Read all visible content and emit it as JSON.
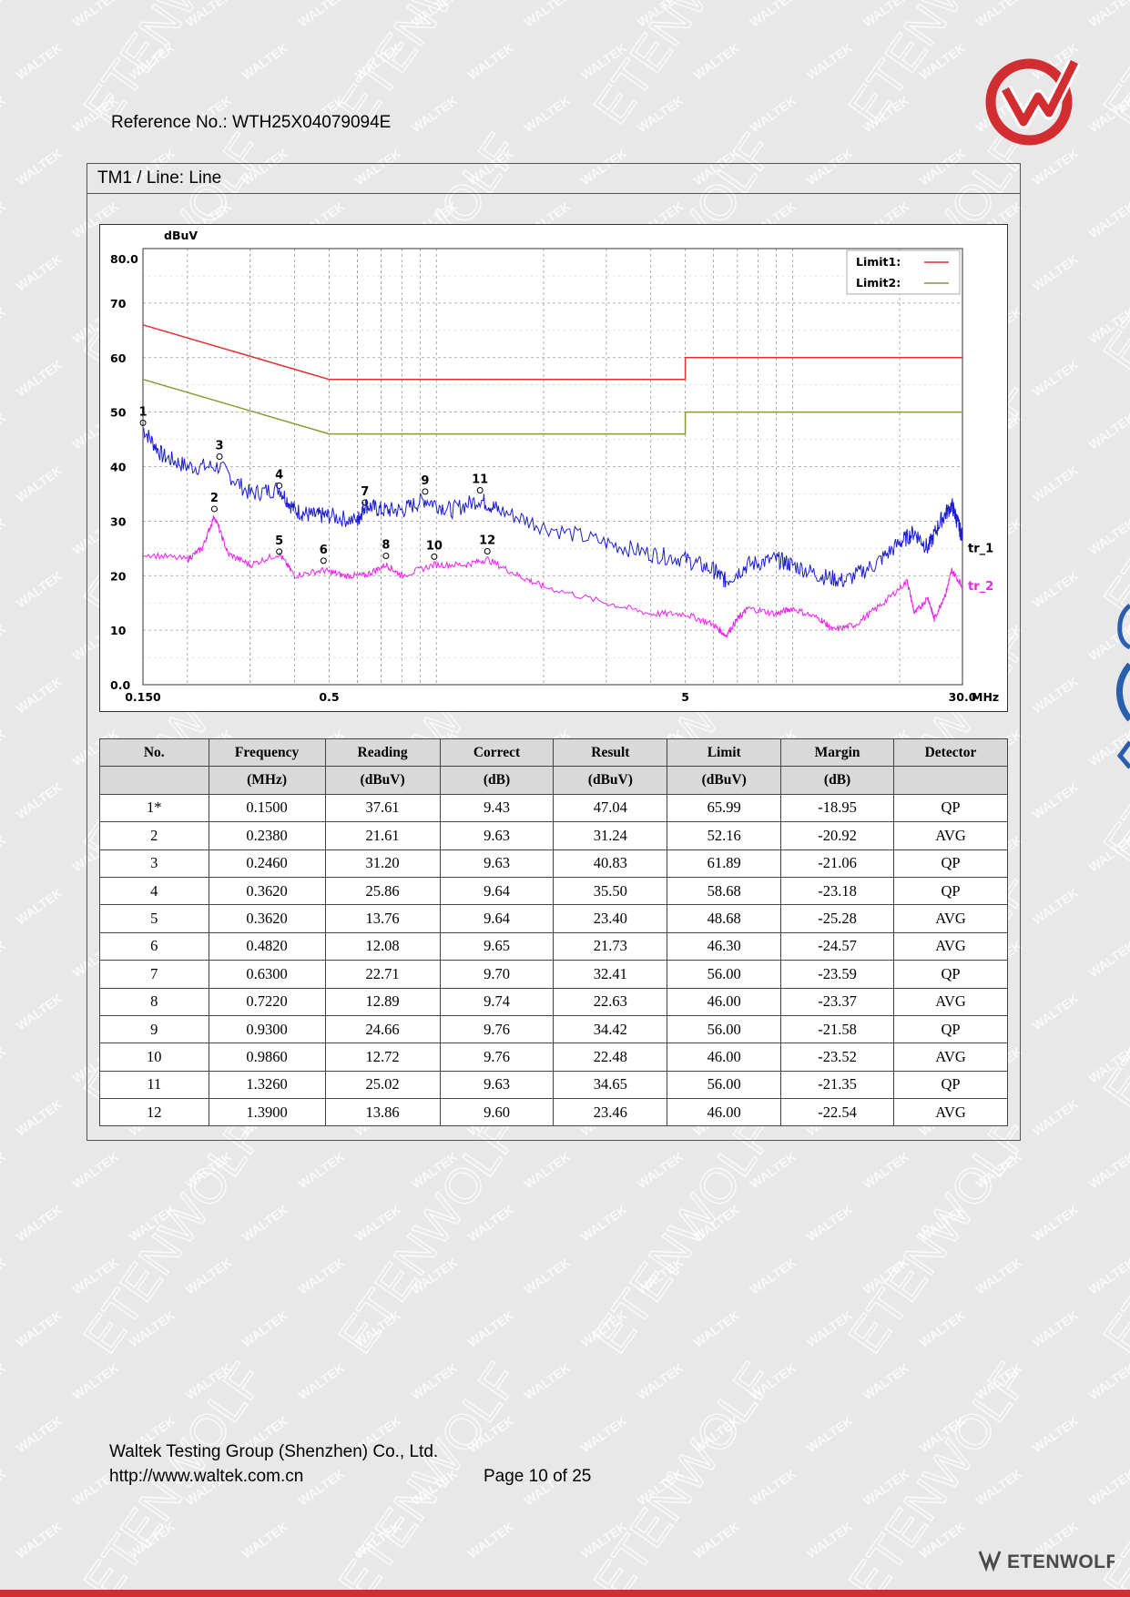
{
  "header": {
    "reference": "Reference No.: WTH25X04079094E"
  },
  "section": {
    "title": "TM1 / Line: Line"
  },
  "watermarks": {
    "small": "WALTEK",
    "large": "ETENWOLF"
  },
  "chart_data": {
    "type": "line",
    "ylabel": "dBuV",
    "xlabel": "MHz",
    "x_scale": "log",
    "xlim": [
      0.15,
      30
    ],
    "ylim": [
      0,
      80
    ],
    "y_ticks": [
      "80.0",
      "70",
      "60",
      "50",
      "40",
      "30",
      "20",
      "10",
      "0.0"
    ],
    "x_ticks": [
      "0.150",
      "0.5",
      "5",
      "30.0"
    ],
    "grid": true,
    "legend_position": "top-right",
    "legend": [
      {
        "label": "Limit1:",
        "color": "#e03030"
      },
      {
        "label": "Limit2:",
        "color": "#8a9a30"
      }
    ],
    "limits": [
      {
        "name": "Limit1",
        "color": "#e03030",
        "points": [
          [
            0.15,
            66
          ],
          [
            0.5,
            56
          ],
          [
            5,
            56
          ],
          [
            5,
            60
          ],
          [
            30,
            60
          ]
        ]
      },
      {
        "name": "Limit2",
        "color": "#8a9a30",
        "points": [
          [
            0.15,
            56
          ],
          [
            0.5,
            46
          ],
          [
            5,
            46
          ],
          [
            5,
            50
          ],
          [
            30,
            50
          ]
        ]
      }
    ],
    "series": [
      {
        "name": "tr_1",
        "color": "#1c1cd0",
        "points": [
          [
            0.15,
            47
          ],
          [
            0.17,
            42
          ],
          [
            0.2,
            40
          ],
          [
            0.246,
            40
          ],
          [
            0.3,
            35
          ],
          [
            0.362,
            36
          ],
          [
            0.4,
            32
          ],
          [
            0.45,
            31
          ],
          [
            0.5,
            31
          ],
          [
            0.6,
            30
          ],
          [
            0.63,
            33
          ],
          [
            0.7,
            32
          ],
          [
            0.8,
            32
          ],
          [
            0.93,
            34
          ],
          [
            1.1,
            32
          ],
          [
            1.326,
            34
          ],
          [
            1.5,
            32
          ],
          [
            2,
            29
          ],
          [
            3,
            26
          ],
          [
            4,
            24
          ],
          [
            5,
            23
          ],
          [
            6,
            21
          ],
          [
            6.5,
            19
          ],
          [
            7.5,
            22
          ],
          [
            9,
            23
          ],
          [
            10,
            22
          ],
          [
            12,
            20
          ],
          [
            14,
            19
          ],
          [
            17,
            22
          ],
          [
            20,
            26
          ],
          [
            22,
            28
          ],
          [
            24,
            25
          ],
          [
            26,
            30
          ],
          [
            28,
            33
          ],
          [
            29,
            30
          ],
          [
            30,
            27
          ]
        ]
      },
      {
        "name": "tr_2",
        "color": "#ee22ee",
        "points": [
          [
            0.15,
            24
          ],
          [
            0.2,
            23
          ],
          [
            0.22,
            25
          ],
          [
            0.238,
            31
          ],
          [
            0.26,
            24
          ],
          [
            0.3,
            22
          ],
          [
            0.362,
            24
          ],
          [
            0.4,
            20
          ],
          [
            0.482,
            21
          ],
          [
            0.55,
            20
          ],
          [
            0.63,
            20
          ],
          [
            0.722,
            22
          ],
          [
            0.8,
            20
          ],
          [
            0.986,
            22
          ],
          [
            1.2,
            22
          ],
          [
            1.39,
            23
          ],
          [
            1.7,
            20
          ],
          [
            2,
            18
          ],
          [
            3,
            15
          ],
          [
            4,
            13
          ],
          [
            5,
            13
          ],
          [
            6,
            11
          ],
          [
            6.5,
            9
          ],
          [
            7,
            12
          ],
          [
            7.5,
            14
          ],
          [
            9,
            13
          ],
          [
            10,
            14
          ],
          [
            12,
            12
          ],
          [
            13,
            10
          ],
          [
            15,
            11
          ],
          [
            18,
            15
          ],
          [
            21,
            19
          ],
          [
            22,
            13
          ],
          [
            24,
            16
          ],
          [
            25,
            12
          ],
          [
            27,
            17
          ],
          [
            28,
            21
          ],
          [
            30,
            18
          ]
        ]
      }
    ],
    "markers": [
      {
        "label": "1",
        "x": 0.15,
        "y": 47.04
      },
      {
        "label": "2",
        "x": 0.238,
        "y": 31.24
      },
      {
        "label": "3",
        "x": 0.246,
        "y": 40.83
      },
      {
        "label": "4",
        "x": 0.362,
        "y": 35.5
      },
      {
        "label": "5",
        "x": 0.362,
        "y": 23.4
      },
      {
        "label": "6",
        "x": 0.482,
        "y": 21.73
      },
      {
        "label": "7",
        "x": 0.63,
        "y": 32.41
      },
      {
        "label": "8",
        "x": 0.722,
        "y": 22.63
      },
      {
        "label": "9",
        "x": 0.93,
        "y": 34.42
      },
      {
        "label": "10",
        "x": 0.986,
        "y": 22.48
      },
      {
        "label": "11",
        "x": 1.326,
        "y": 34.65
      },
      {
        "label": "12",
        "x": 1.39,
        "y": 23.46
      }
    ]
  },
  "table": {
    "headers": [
      "No.",
      "Frequency",
      "Reading",
      "Correct",
      "Result",
      "Limit",
      "Margin",
      "Detector"
    ],
    "units": [
      "",
      "(MHz)",
      "(dBuV)",
      "(dB)",
      "(dBuV)",
      "(dBuV)",
      "(dB)",
      ""
    ],
    "rows": [
      [
        "1*",
        "0.1500",
        "37.61",
        "9.43",
        "47.04",
        "65.99",
        "-18.95",
        "QP"
      ],
      [
        "2",
        "0.2380",
        "21.61",
        "9.63",
        "31.24",
        "52.16",
        "-20.92",
        "AVG"
      ],
      [
        "3",
        "0.2460",
        "31.20",
        "9.63",
        "40.83",
        "61.89",
        "-21.06",
        "QP"
      ],
      [
        "4",
        "0.3620",
        "25.86",
        "9.64",
        "35.50",
        "58.68",
        "-23.18",
        "QP"
      ],
      [
        "5",
        "0.3620",
        "13.76",
        "9.64",
        "23.40",
        "48.68",
        "-25.28",
        "AVG"
      ],
      [
        "6",
        "0.4820",
        "12.08",
        "9.65",
        "21.73",
        "46.30",
        "-24.57",
        "AVG"
      ],
      [
        "7",
        "0.6300",
        "22.71",
        "9.70",
        "32.41",
        "56.00",
        "-23.59",
        "QP"
      ],
      [
        "8",
        "0.7220",
        "12.89",
        "9.74",
        "22.63",
        "46.00",
        "-23.37",
        "AVG"
      ],
      [
        "9",
        "0.9300",
        "24.66",
        "9.76",
        "34.42",
        "56.00",
        "-21.58",
        "QP"
      ],
      [
        "10",
        "0.9860",
        "12.72",
        "9.76",
        "22.48",
        "46.00",
        "-23.52",
        "AVG"
      ],
      [
        "11",
        "1.3260",
        "25.02",
        "9.63",
        "34.65",
        "56.00",
        "-21.35",
        "QP"
      ],
      [
        "12",
        "1.3900",
        "13.86",
        "9.60",
        "23.46",
        "46.00",
        "-22.54",
        "AVG"
      ]
    ]
  },
  "footer": {
    "company": "Waltek Testing Group (Shenzhen) Co., Ltd.",
    "website": "http://www.waltek.com.cn",
    "page": "Page 10 of 25",
    "brand": "ETENWOLF"
  }
}
